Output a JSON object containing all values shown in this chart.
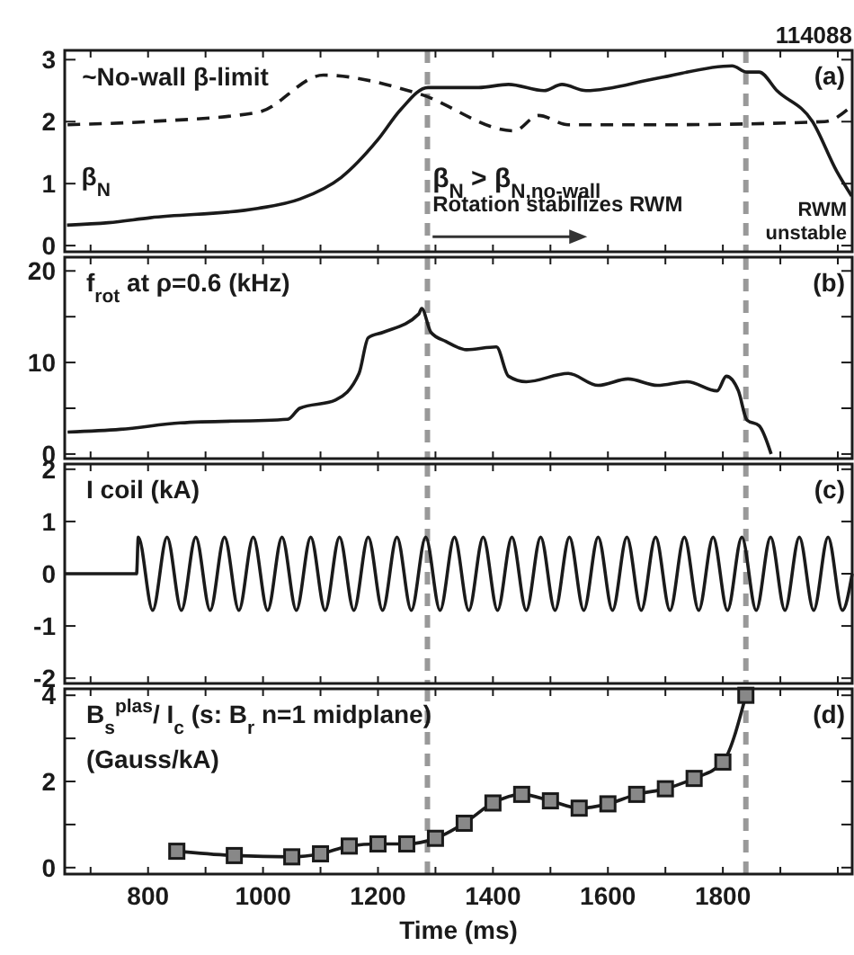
{
  "chart_data": [
    {
      "type": "line",
      "xlim": [
        655,
        2025
      ],
      "ylim": [
        -0.1,
        3.15
      ],
      "yticks": [
        0,
        1,
        2,
        3
      ],
      "tick_labels": "y",
      "grid": false,
      "xticks": [
        {
          "value": 700,
          "label": null
        },
        {
          "value": 800,
          "label": null
        },
        {
          "value": 900,
          "label": null
        },
        {
          "value": 1000,
          "label": null
        },
        {
          "value": 1100,
          "label": null
        },
        {
          "value": 1200,
          "label": null
        },
        {
          "value": 1300,
          "label": null
        },
        {
          "value": 1400,
          "label": null
        },
        {
          "value": 1500,
          "label": null
        },
        {
          "value": 1600,
          "label": null
        },
        {
          "value": 1700,
          "label": null
        },
        {
          "value": 1800,
          "label": null
        },
        {
          "value": 1900,
          "label": null
        },
        {
          "value": 2000,
          "label": null
        }
      ],
      "series": [
        {
          "color": "#1a1a1a",
          "line_style": "solid",
          "x": [
            659,
            731,
            804,
            991,
            1064,
            1136,
            1199,
            1240,
            1287,
            1375,
            1427,
            1489,
            1520,
            1562,
            1686,
            1816,
            1842,
            1863,
            1894,
            1956,
            1998,
            2024
          ],
          "values": [
            0.33,
            0.37,
            0.45,
            0.6,
            0.75,
            1.1,
            1.7,
            2.2,
            2.55,
            2.55,
            2.6,
            2.5,
            2.6,
            2.5,
            2.7,
            2.9,
            2.8,
            2.8,
            2.5,
            2.0,
            1.2,
            0.8
          ]
        },
        {
          "color": "#1a1a1a",
          "line_style": "dashed",
          "x": [
            660,
            800,
            991,
            1105,
            1271,
            1437,
            1479,
            1531,
            1700,
            1977,
            2024
          ],
          "values": [
            1.95,
            2.0,
            2.15,
            2.75,
            2.45,
            1.85,
            2.1,
            1.95,
            1.95,
            2.0,
            2.25
          ]
        }
      ],
      "ref_lines": [
        {
          "axis": "x",
          "value": 1286,
          "color": "#999999",
          "line_style": "dashed"
        },
        {
          "axis": "x",
          "value": 1840,
          "color": "#999999",
          "line_style": "dashed"
        }
      ],
      "annotations": [
        "(a)",
        "114088",
        "RWM",
        "unstable",
        {
          "text": "β$_{N}$",
          "x": 659,
          "y": 0.33
        },
        {
          "text": "~No-wall β-limit",
          "x": 660,
          "y": 1.95
        },
        {
          "text": "β$_{N}$ > β$_{N,no-wall}$",
          "x": 1295,
          "y": 0.95
        },
        {
          "text": "Rotation stabilizes RWM",
          "x": 1295,
          "y": 0.55
        }
      ]
    },
    {
      "type": "line",
      "title": "f$_{rot}$ at ρ=0.6 (kHz)",
      "xlim": [
        655,
        2025
      ],
      "ylim": [
        -0.5,
        21.5
      ],
      "yticks": [
        0,
        {
          "value": 5,
          "label": null
        },
        10,
        {
          "value": 15,
          "label": null
        },
        20
      ],
      "tick_labels": "y",
      "grid": false,
      "xticks": [
        {
          "value": 700,
          "label": null
        },
        {
          "value": 800,
          "label": null
        },
        {
          "value": 900,
          "label": null
        },
        {
          "value": 1000,
          "label": null
        },
        {
          "value": 1100,
          "label": null
        },
        {
          "value": 1200,
          "label": null
        },
        {
          "value": 1300,
          "label": null
        },
        {
          "value": 1400,
          "label": null
        },
        {
          "value": 1500,
          "label": null
        },
        {
          "value": 1600,
          "label": null
        },
        {
          "value": 1700,
          "label": null
        },
        {
          "value": 1800,
          "label": null
        },
        {
          "value": 1900,
          "label": null
        },
        {
          "value": 2000,
          "label": null
        }
      ],
      "series": [
        {
          "color": "#1a1a1a",
          "x": [
            660,
            752,
            856,
            1043,
            1064,
            1126,
            1167,
            1183,
            1209,
            1271,
            1276,
            1292,
            1318,
            1354,
            1406,
            1427,
            1458,
            1531,
            1583,
            1635,
            1686,
            1738,
            1790,
            1806,
            1827,
            1842,
            1863,
            1884
          ],
          "values": [
            2.4,
            2.7,
            3.4,
            3.8,
            5.0,
            5.9,
            8.8,
            12.7,
            13.3,
            15.3,
            15.9,
            13.3,
            12.3,
            11.4,
            11.7,
            8.5,
            7.9,
            8.8,
            7.5,
            8.2,
            7.5,
            7.9,
            6.9,
            8.5,
            6.9,
            3.7,
            3.1,
            0
          ]
        }
      ],
      "ref_lines": [
        {
          "axis": "x",
          "value": 1286,
          "color": "#999999",
          "line_style": "dashed"
        },
        {
          "axis": "x",
          "value": 1840,
          "color": "#999999",
          "line_style": "dashed"
        }
      ],
      "annotations": [
        "(b)"
      ]
    },
    {
      "type": "line",
      "title": "I coil (kA)",
      "xlim": [
        655,
        2025
      ],
      "ylim": [
        -2.1,
        2.1
      ],
      "yticks": [
        -2,
        -1,
        0,
        1,
        2
      ],
      "tick_labels": "y",
      "grid": false,
      "xticks": [
        {
          "value": 700,
          "label": null
        },
        {
          "value": 800,
          "label": null
        },
        {
          "value": 900,
          "label": null
        },
        {
          "value": 1000,
          "label": null
        },
        {
          "value": 1100,
          "label": null
        },
        {
          "value": 1200,
          "label": null
        },
        {
          "value": 1300,
          "label": null
        },
        {
          "value": 1400,
          "label": null
        },
        {
          "value": 1500,
          "label": null
        },
        {
          "value": 1600,
          "label": null
        },
        {
          "value": 1700,
          "label": null
        },
        {
          "value": 1800,
          "label": null
        },
        {
          "value": 1900,
          "label": null
        },
        {
          "value": 2000,
          "label": null
        }
      ],
      "series": [
        {
          "color": "#1a1a1a",
          "x": [
            655,
            780,
            783,
            808,
            833,
            858,
            883,
            908,
            933,
            958,
            983,
            1008,
            1033,
            1058,
            1083,
            1108,
            1133,
            1158,
            1183,
            1208,
            1233,
            1258,
            1283,
            1308,
            1333,
            1358,
            1383,
            1408,
            1433,
            1458,
            1483,
            1508,
            1533,
            1558,
            1583,
            1608,
            1633,
            1658,
            1683,
            1708,
            1733,
            1758,
            1783,
            1808,
            1833,
            1858,
            1883,
            1908,
            1933,
            1958,
            1983,
            2008,
            2025
          ],
          "values": [
            0,
            0,
            0.7,
            -0.7,
            0.7,
            -0.7,
            0.7,
            -0.7,
            0.7,
            -0.7,
            0.7,
            -0.7,
            0.7,
            -0.7,
            0.7,
            -0.7,
            0.7,
            -0.7,
            0.7,
            -0.7,
            0.7,
            -0.7,
            0.7,
            -0.7,
            0.7,
            -0.7,
            0.7,
            -0.7,
            0.7,
            -0.7,
            0.7,
            -0.7,
            0.7,
            -0.7,
            0.7,
            -0.7,
            0.7,
            -0.7,
            0.7,
            -0.7,
            0.7,
            -0.7,
            0.7,
            -0.7,
            0.7,
            -0.7,
            0.7,
            -0.7,
            0.7,
            -0.7,
            0.7,
            -0.7,
            0
          ]
        }
      ],
      "ref_lines": [
        {
          "axis": "x",
          "value": 1286,
          "color": "#999999",
          "line_style": "dashed"
        },
        {
          "axis": "x",
          "value": 1840,
          "color": "#999999",
          "line_style": "dashed"
        }
      ],
      "annotations": [
        "(c)"
      ]
    },
    {
      "type": "line",
      "title": "B$_{s}$$^{plas}$/ I$_{c}$ (s: B$_{r}$ n=1 midplane)",
      "subtitle": "(Gauss/kA)",
      "xlabel": "Time (ms)",
      "xlim": [
        655,
        2025
      ],
      "ylim": [
        -0.15,
        4.15
      ],
      "yticks": [
        0,
        {
          "value": 1,
          "label": null
        },
        2,
        {
          "value": 3,
          "label": null
        },
        4
      ],
      "grid": false,
      "marker": "square",
      "xticks": [
        {
          "value": 700,
          "label": null
        },
        800,
        {
          "value": 900,
          "label": null
        },
        1000,
        {
          "value": 1100,
          "label": null
        },
        1200,
        {
          "value": 1300,
          "label": null
        },
        1400,
        {
          "value": 1500,
          "label": null
        },
        1600,
        {
          "value": 1700,
          "label": null
        },
        1800,
        {
          "value": 1900,
          "label": null
        },
        {
          "value": 2000,
          "label": null
        }
      ],
      "series": [
        {
          "color": "#1a1a1a",
          "x": [
            850,
            950,
            1050,
            1100,
            1150,
            1200,
            1250,
            1300,
            1350,
            1400,
            1450,
            1500,
            1550,
            1600,
            1650,
            1700,
            1750,
            1800,
            1840
          ],
          "values": [
            0.38,
            0.28,
            0.25,
            0.32,
            0.5,
            0.55,
            0.55,
            0.68,
            1.03,
            1.5,
            1.7,
            1.55,
            1.38,
            1.48,
            1.7,
            1.83,
            2.07,
            2.45,
            4.0
          ]
        }
      ],
      "ref_lines": [
        {
          "axis": "x",
          "value": 1286,
          "color": "#999999",
          "line_style": "dashed"
        },
        {
          "axis": "x",
          "value": 1840,
          "color": "#999999",
          "line_style": "dashed"
        }
      ],
      "annotations": [
        "(d)"
      ]
    }
  ]
}
